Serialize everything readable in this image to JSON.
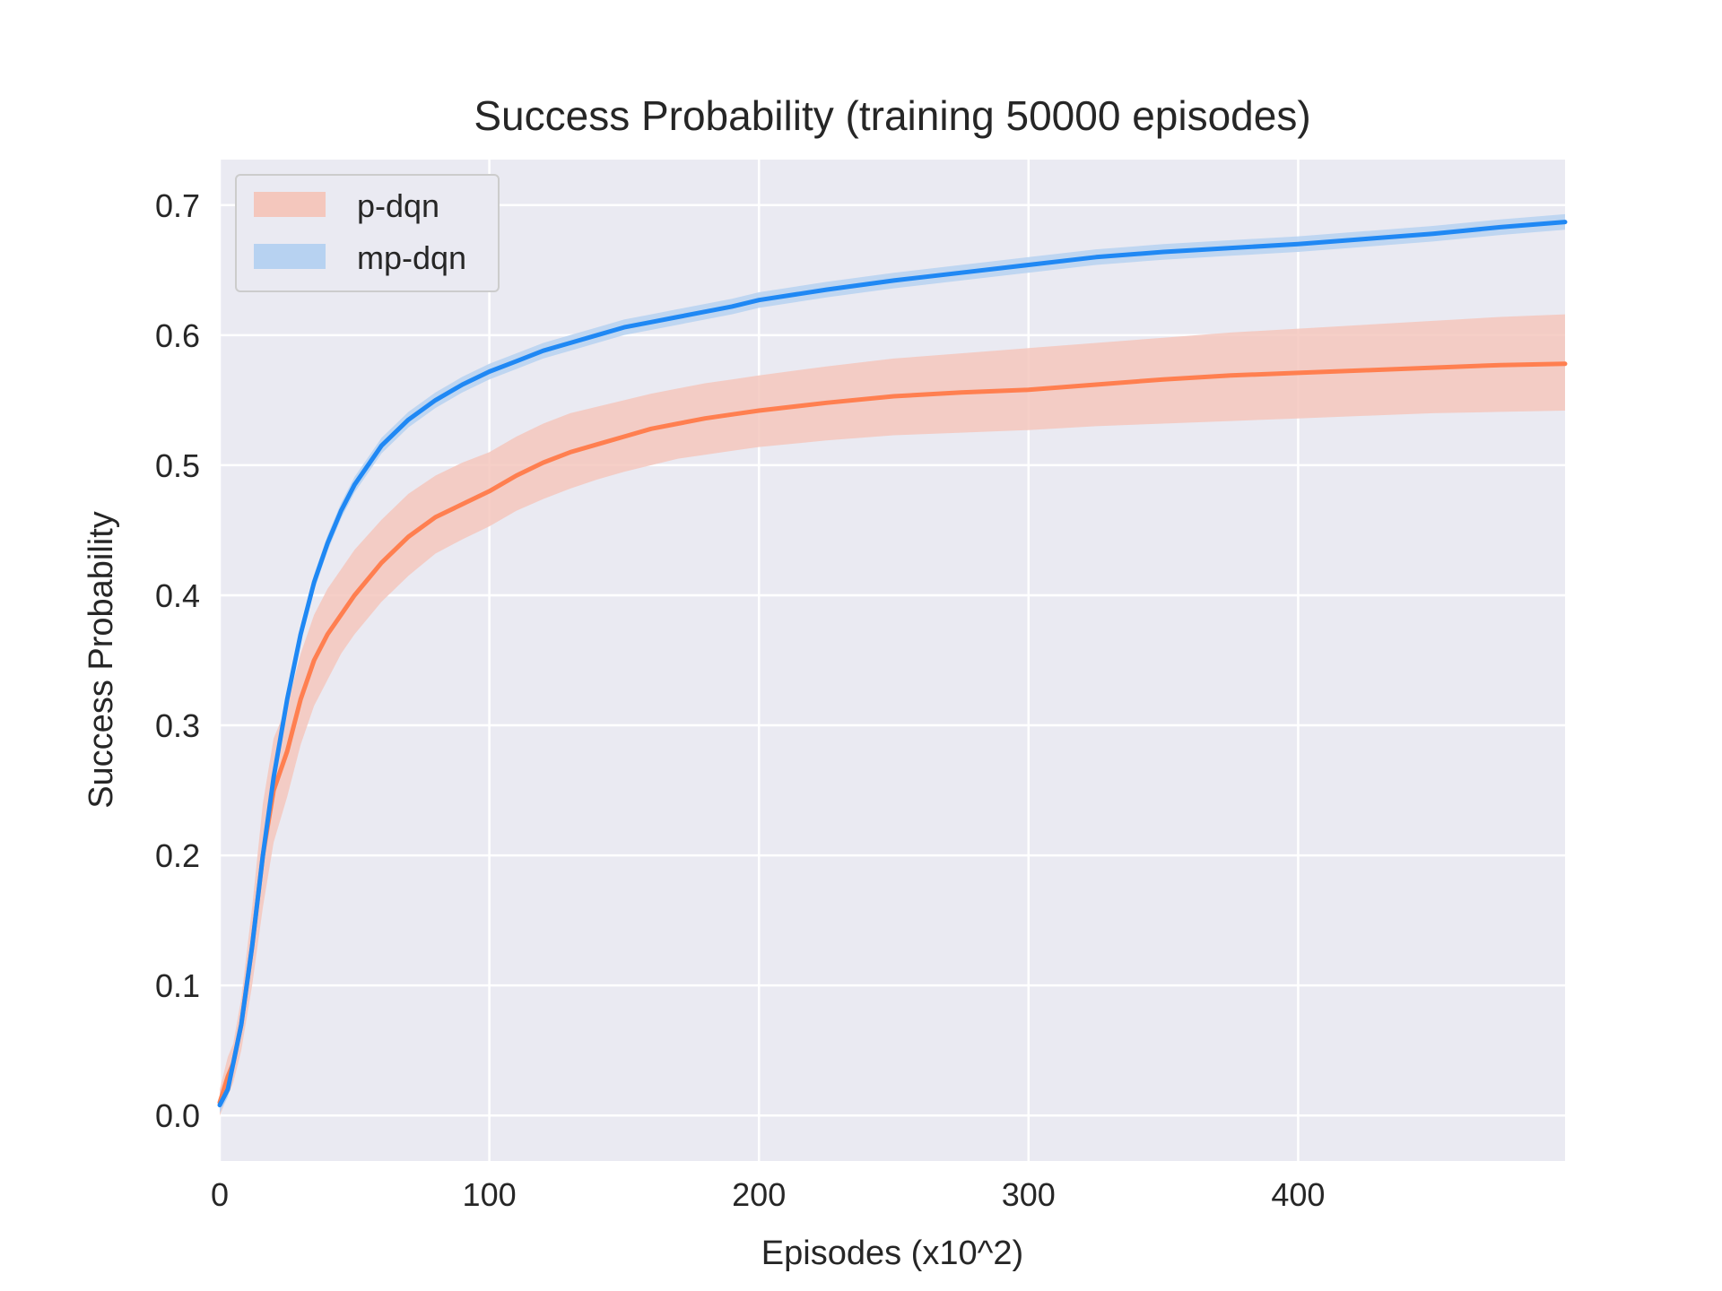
{
  "chart_data": {
    "type": "line",
    "title": "Success Probability (training 50000 episodes)",
    "xlabel": "Episodes (x10^2)",
    "ylabel": "Success Probability",
    "xlim": [
      0,
      499
    ],
    "ylim": [
      -0.035,
      0.735
    ],
    "xticks": [
      0,
      100,
      200,
      300,
      400
    ],
    "yticks": [
      0.0,
      0.1,
      0.2,
      0.3,
      0.4,
      0.5,
      0.6,
      0.7
    ],
    "xtick_labels": [
      "0",
      "100",
      "200",
      "300",
      "400"
    ],
    "ytick_labels": [
      "0.0",
      "0.1",
      "0.2",
      "0.3",
      "0.4",
      "0.5",
      "0.6",
      "0.7"
    ],
    "grid": true,
    "background": "#eaeaf2",
    "grid_color": "#ffffff",
    "legend_position": "top-left",
    "x": [
      0,
      3,
      5,
      8,
      12,
      16,
      20,
      25,
      30,
      35,
      40,
      45,
      50,
      60,
      70,
      80,
      90,
      100,
      110,
      120,
      130,
      140,
      150,
      160,
      170,
      180,
      190,
      200,
      225,
      250,
      275,
      300,
      325,
      350,
      375,
      400,
      425,
      450,
      475,
      499
    ],
    "series": [
      {
        "name": "p-dqn",
        "color": "#ff7f50",
        "band_color": "#f4c7bd",
        "values": [
          0.01,
          0.03,
          0.04,
          0.07,
          0.13,
          0.2,
          0.25,
          0.28,
          0.32,
          0.35,
          0.37,
          0.385,
          0.4,
          0.425,
          0.445,
          0.46,
          0.47,
          0.48,
          0.492,
          0.502,
          0.51,
          0.516,
          0.522,
          0.528,
          0.532,
          0.536,
          0.539,
          0.542,
          0.548,
          0.553,
          0.556,
          0.558,
          0.562,
          0.566,
          0.569,
          0.571,
          0.573,
          0.575,
          0.577,
          0.578
        ],
        "lower": [
          0.0,
          0.015,
          0.025,
          0.05,
          0.1,
          0.16,
          0.21,
          0.245,
          0.285,
          0.315,
          0.335,
          0.355,
          0.37,
          0.395,
          0.415,
          0.432,
          0.443,
          0.453,
          0.465,
          0.474,
          0.482,
          0.489,
          0.495,
          0.5,
          0.505,
          0.508,
          0.511,
          0.514,
          0.519,
          0.523,
          0.525,
          0.527,
          0.53,
          0.532,
          0.534,
          0.536,
          0.538,
          0.54,
          0.541,
          0.542
        ],
        "upper": [
          0.02,
          0.045,
          0.055,
          0.09,
          0.16,
          0.24,
          0.29,
          0.315,
          0.355,
          0.385,
          0.405,
          0.42,
          0.435,
          0.458,
          0.478,
          0.492,
          0.502,
          0.51,
          0.522,
          0.532,
          0.54,
          0.545,
          0.55,
          0.555,
          0.559,
          0.563,
          0.566,
          0.569,
          0.576,
          0.582,
          0.586,
          0.59,
          0.594,
          0.598,
          0.602,
          0.605,
          0.608,
          0.611,
          0.614,
          0.616
        ]
      },
      {
        "name": "mp-dqn",
        "color": "#1f88f4",
        "band_color": "#b7d2f1",
        "values": [
          0.008,
          0.02,
          0.04,
          0.07,
          0.13,
          0.2,
          0.26,
          0.32,
          0.37,
          0.41,
          0.44,
          0.465,
          0.485,
          0.515,
          0.535,
          0.55,
          0.562,
          0.572,
          0.58,
          0.588,
          0.594,
          0.6,
          0.606,
          0.61,
          0.614,
          0.618,
          0.622,
          0.627,
          0.635,
          0.642,
          0.648,
          0.654,
          0.66,
          0.664,
          0.667,
          0.67,
          0.674,
          0.678,
          0.683,
          0.687
        ]
      }
    ]
  }
}
